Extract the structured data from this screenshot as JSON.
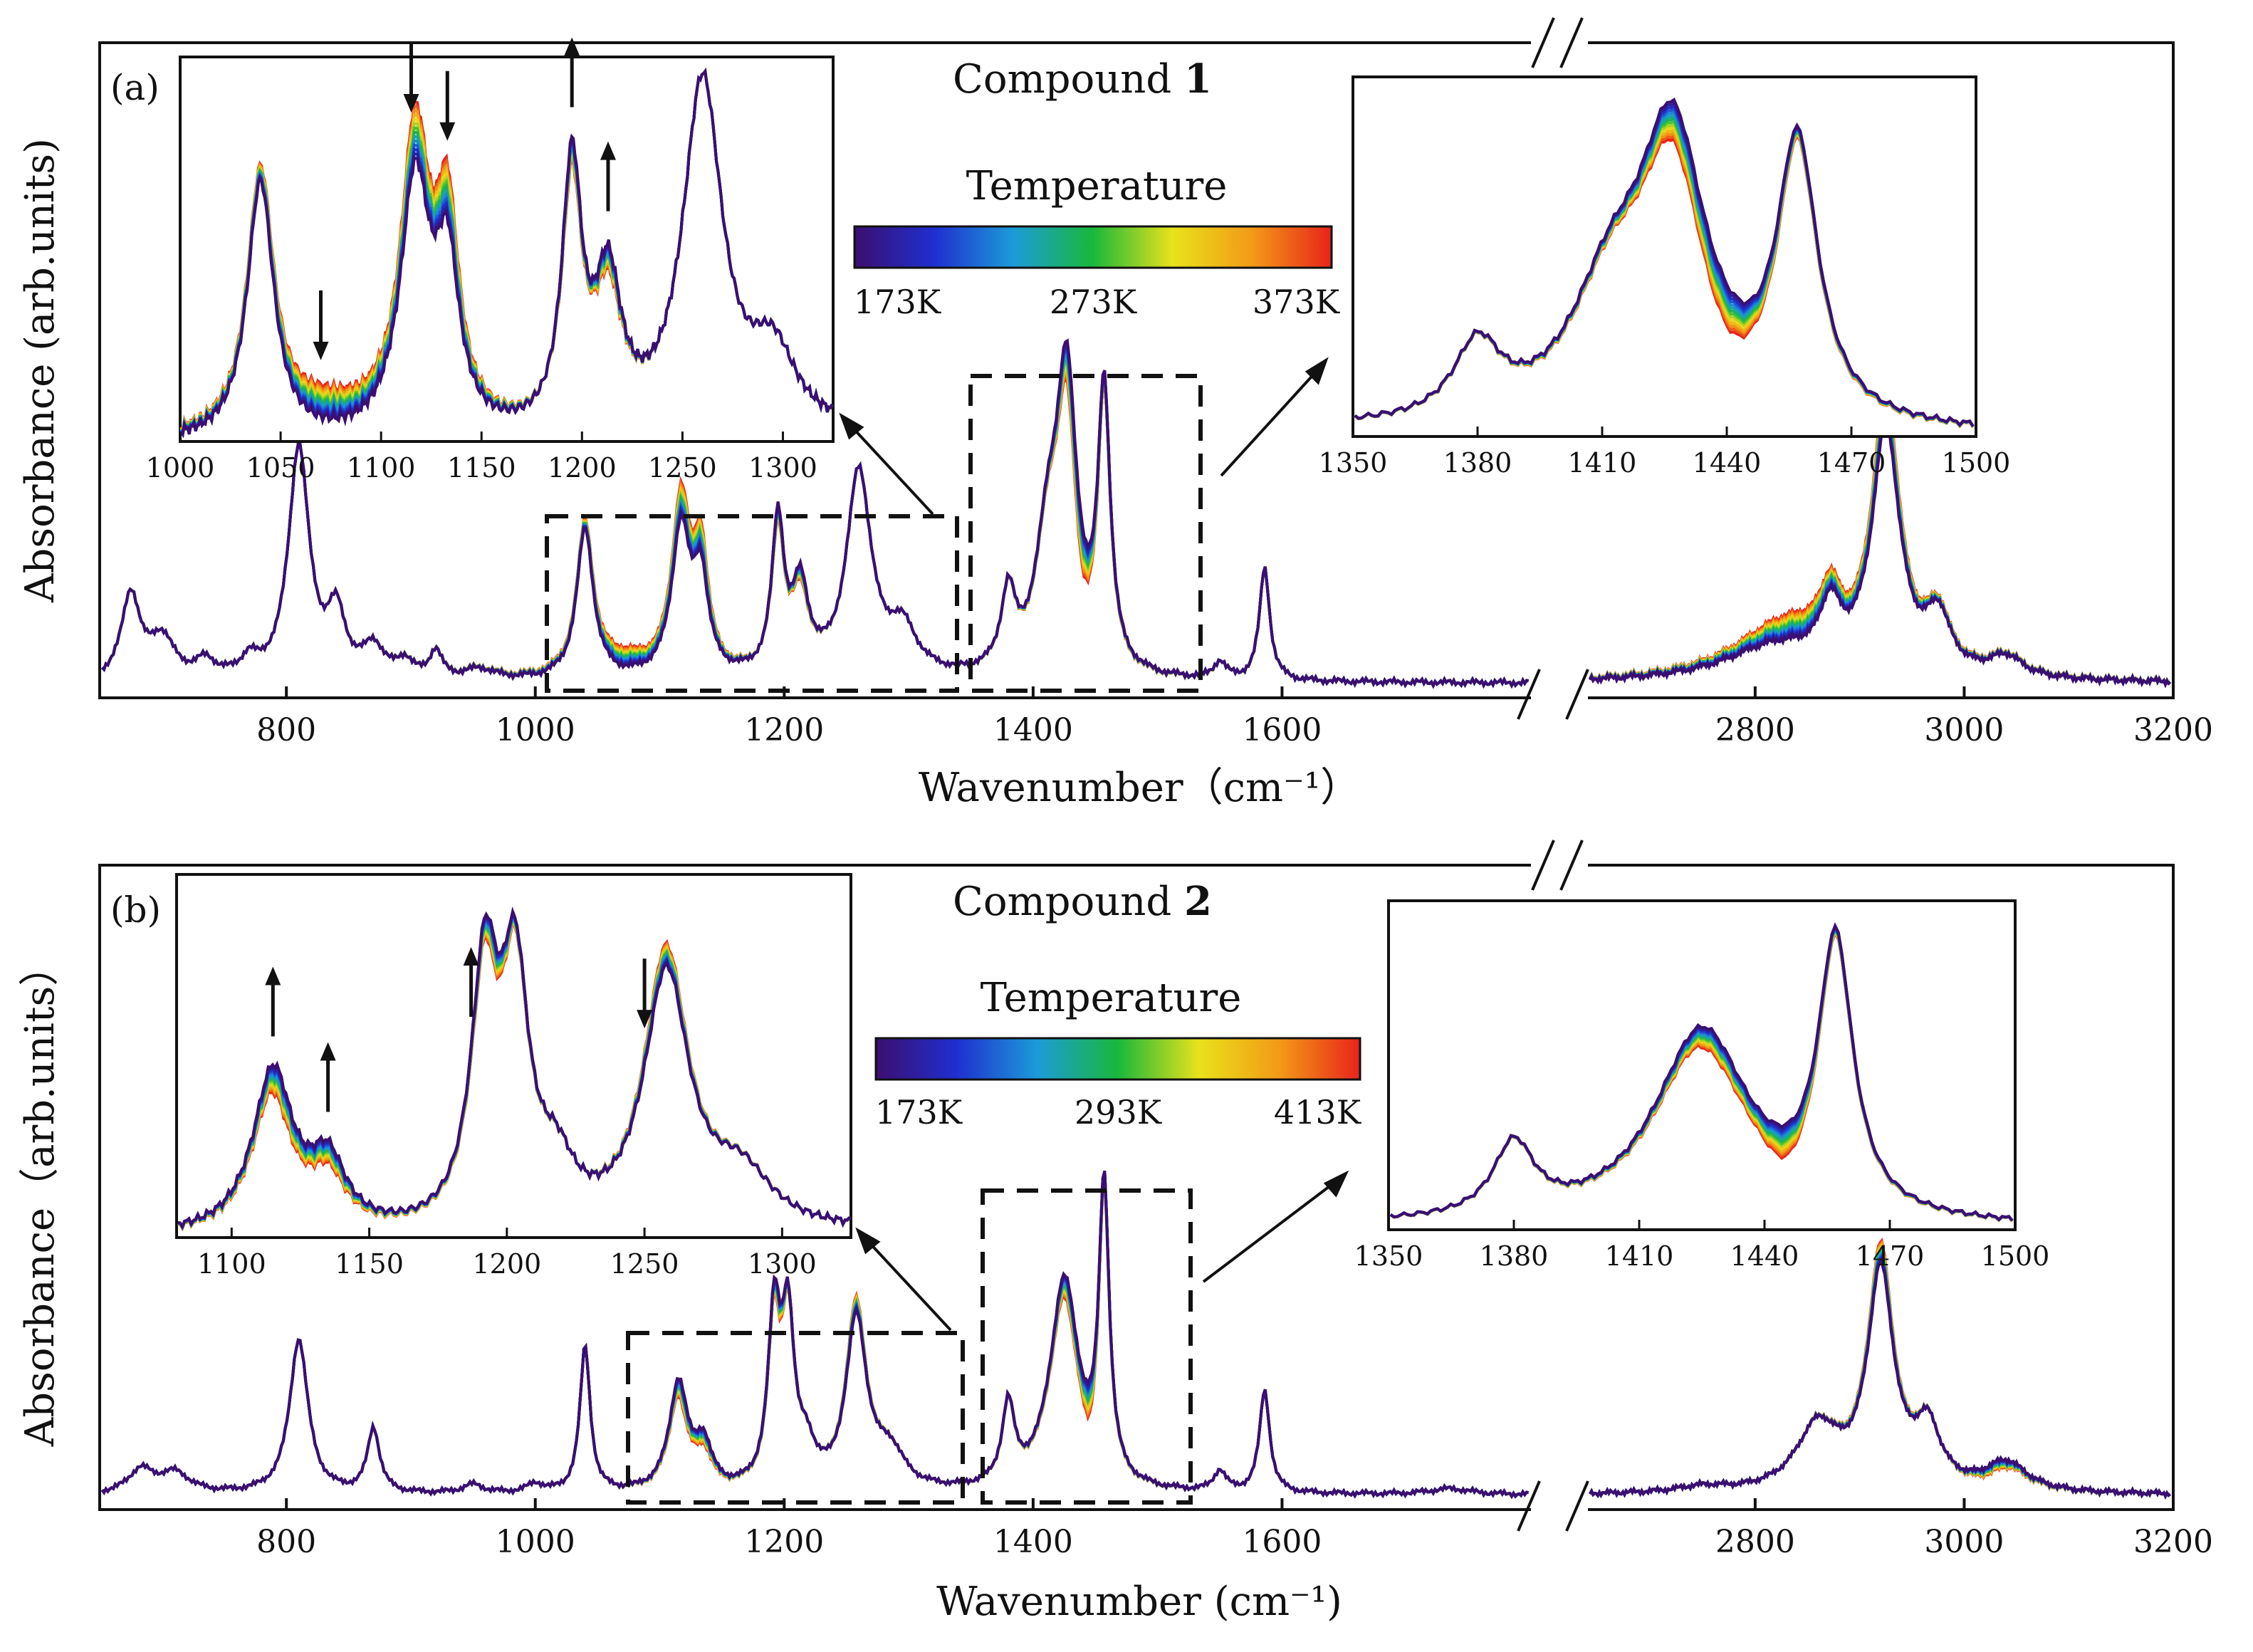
{
  "chart_data": [
    {
      "type": "line",
      "panel_label": "(a)",
      "title_prefix": "Compound",
      "title_number": "1",
      "xlabel": "Wavenumber（cm⁻¹）",
      "ylabel": "Absorbance (arb.units)",
      "x_break": [
        1800,
        2640
      ],
      "xlim_left": [
        650,
        1800
      ],
      "xlim_right": [
        2640,
        3200
      ],
      "xticks_left": [
        800,
        1000,
        1200,
        1400,
        1600
      ],
      "xticks_right": [
        2800,
        3000,
        3200
      ],
      "colorbar": {
        "title": "Temperature",
        "labels": [
          "173K",
          "273K",
          "373K"
        ],
        "range_K": [
          173,
          373
        ]
      },
      "peaks": [
        {
          "x": 675,
          "h": 0.25,
          "w": 9
        },
        {
          "x": 700,
          "h": 0.12,
          "w": 12
        },
        {
          "x": 735,
          "h": 0.05,
          "w": 10
        },
        {
          "x": 770,
          "h": 0.05,
          "w": 8
        },
        {
          "x": 810,
          "h": 0.68,
          "w": 10
        },
        {
          "x": 840,
          "h": 0.18,
          "w": 9
        },
        {
          "x": 870,
          "h": 0.09,
          "w": 10
        },
        {
          "x": 895,
          "h": 0.05,
          "w": 8
        },
        {
          "x": 920,
          "h": 0.08,
          "w": 6
        },
        {
          "x": 955,
          "h": 0.03,
          "w": 15
        },
        {
          "x": 1040,
          "h": 0.44,
          "w": 8
        },
        {
          "x": 1117,
          "h": 0.43,
          "w": 9
        },
        {
          "x": 1133,
          "h": 0.27,
          "w": 7
        },
        {
          "x": 1195,
          "h": 0.45,
          "w": 6
        },
        {
          "x": 1213,
          "h": 0.25,
          "w": 8
        },
        {
          "x": 1260,
          "h": 0.6,
          "w": 12
        },
        {
          "x": 1295,
          "h": 0.13,
          "w": 14
        },
        {
          "x": 1380,
          "h": 0.22,
          "w": 7
        },
        {
          "x": 1412,
          "h": 0.35,
          "w": 12
        },
        {
          "x": 1427,
          "h": 0.82,
          "w": 10
        },
        {
          "x": 1457,
          "h": 0.81,
          "w": 6
        },
        {
          "x": 1550,
          "h": 0.05,
          "w": 6
        },
        {
          "x": 1586,
          "h": 0.33,
          "w": 5
        },
        {
          "x": 2820,
          "h": 0.1,
          "w": 60
        },
        {
          "x": 2872,
          "h": 0.16,
          "w": 12
        },
        {
          "x": 2925,
          "h": 0.72,
          "w": 16
        },
        {
          "x": 2975,
          "h": 0.16,
          "w": 14
        },
        {
          "x": 3040,
          "h": 0.06,
          "w": 20
        }
      ],
      "temperature_bands": [
        {
          "x": 1070,
          "amp": 0.05,
          "w": 30
        },
        {
          "x": 1117,
          "amp": 0.07,
          "w": 8
        },
        {
          "x": 1133,
          "amp": 0.07,
          "w": 7
        },
        {
          "x": 1195,
          "amp": -0.04,
          "w": 5
        },
        {
          "x": 1213,
          "amp": -0.04,
          "w": 6
        },
        {
          "x": 1427,
          "amp": -0.08,
          "w": 8
        },
        {
          "x": 1440,
          "amp": -0.1,
          "w": 10
        },
        {
          "x": 2840,
          "amp": 0.07,
          "w": 50
        },
        {
          "x": 2925,
          "amp": 0.08,
          "w": 16
        }
      ],
      "inset_left": {
        "xlim": [
          1000,
          1325
        ],
        "xticks": [
          1000,
          1050,
          1100,
          1150,
          1200,
          1250,
          1300
        ],
        "arrows": [
          {
            "x": 1070,
            "dir": "down"
          },
          {
            "x": 1115,
            "dir": "down"
          },
          {
            "x": 1133,
            "dir": "down"
          },
          {
            "x": 1195,
            "dir": "up"
          },
          {
            "x": 1213,
            "dir": "up"
          }
        ]
      },
      "inset_right": {
        "xlim": [
          1350,
          1500
        ],
        "xticks": [
          1350,
          1380,
          1410,
          1440,
          1470,
          1500
        ]
      }
    },
    {
      "type": "line",
      "panel_label": "(b)",
      "title_prefix": "Compound",
      "title_number": "2",
      "xlabel": "Wavenumber (cm⁻¹)",
      "ylabel": "Absorbance（arb.units）",
      "x_break": [
        1800,
        2640
      ],
      "xlim_left": [
        650,
        1800
      ],
      "xlim_right": [
        2640,
        3200
      ],
      "xticks_left": [
        800,
        1000,
        1200,
        1400,
        1600
      ],
      "xticks_right": [
        2800,
        3000,
        3200
      ],
      "colorbar": {
        "title": "Temperature",
        "labels": [
          "173K",
          "293K",
          "413K"
        ],
        "range_K": [
          173,
          413
        ]
      },
      "peaks": [
        {
          "x": 683,
          "h": 0.08,
          "w": 12
        },
        {
          "x": 710,
          "h": 0.07,
          "w": 15
        },
        {
          "x": 810,
          "h": 0.53,
          "w": 9
        },
        {
          "x": 870,
          "h": 0.22,
          "w": 6
        },
        {
          "x": 950,
          "h": 0.03,
          "w": 10
        },
        {
          "x": 1000,
          "h": 0.03,
          "w": 8
        },
        {
          "x": 1040,
          "h": 0.5,
          "w": 5
        },
        {
          "x": 1115,
          "h": 0.37,
          "w": 9
        },
        {
          "x": 1135,
          "h": 0.15,
          "w": 8
        },
        {
          "x": 1192,
          "h": 0.58,
          "w": 6
        },
        {
          "x": 1203,
          "h": 0.55,
          "w": 6
        },
        {
          "x": 1218,
          "h": 0.12,
          "w": 8
        },
        {
          "x": 1258,
          "h": 0.58,
          "w": 10
        },
        {
          "x": 1285,
          "h": 0.12,
          "w": 14
        },
        {
          "x": 1380,
          "h": 0.27,
          "w": 6
        },
        {
          "x": 1425,
          "h": 0.72,
          "w": 14
        },
        {
          "x": 1457,
          "h": 1.0,
          "w": 5
        },
        {
          "x": 1550,
          "h": 0.07,
          "w": 6
        },
        {
          "x": 1586,
          "h": 0.35,
          "w": 5
        },
        {
          "x": 1735,
          "h": 0.02,
          "w": 20
        },
        {
          "x": 2750,
          "h": 0.02,
          "w": 30
        },
        {
          "x": 2860,
          "h": 0.22,
          "w": 25
        },
        {
          "x": 2920,
          "h": 0.74,
          "w": 15
        },
        {
          "x": 2965,
          "h": 0.2,
          "w": 15
        },
        {
          "x": 3040,
          "h": 0.1,
          "w": 25
        }
      ],
      "temperature_bands": [
        {
          "x": 1117,
          "amp": -0.06,
          "w": 8
        },
        {
          "x": 1135,
          "amp": -0.04,
          "w": 8
        },
        {
          "x": 1195,
          "amp": -0.06,
          "w": 6
        },
        {
          "x": 1257,
          "amp": 0.05,
          "w": 8
        },
        {
          "x": 1427,
          "amp": -0.07,
          "w": 10
        },
        {
          "x": 1445,
          "amp": -0.1,
          "w": 6
        },
        {
          "x": 2920,
          "amp": 0.07,
          "w": 15
        },
        {
          "x": 3030,
          "amp": -0.03,
          "w": 25
        }
      ],
      "inset_left": {
        "xlim": [
          1080,
          1325
        ],
        "xticks": [
          1100,
          1150,
          1200,
          1250,
          1300
        ],
        "arrows": [
          {
            "x": 1115,
            "dir": "up"
          },
          {
            "x": 1135,
            "dir": "up"
          },
          {
            "x": 1187,
            "dir": "up"
          },
          {
            "x": 1250,
            "dir": "down"
          }
        ]
      },
      "inset_right": {
        "xlim": [
          1350,
          1500
        ],
        "xticks": [
          1350,
          1380,
          1410,
          1440,
          1470,
          1500
        ]
      }
    }
  ],
  "colors": {
    "rainbow": [
      "#3b0f70",
      "#1f2fcf",
      "#1c9bd8",
      "#19b83a",
      "#e8e21b",
      "#f39a17",
      "#e8231a"
    ],
    "axis": "#111111",
    "dashed_box": "#111111"
  }
}
